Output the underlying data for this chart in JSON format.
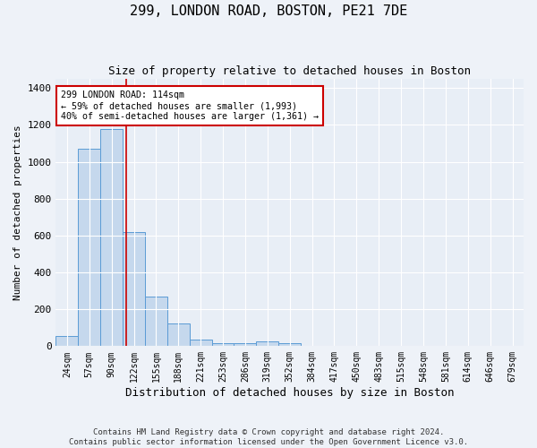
{
  "title": "299, LONDON ROAD, BOSTON, PE21 7DE",
  "subtitle": "Size of property relative to detached houses in Boston",
  "xlabel": "Distribution of detached houses by size in Boston",
  "ylabel": "Number of detached properties",
  "categories": [
    "24sqm",
    "57sqm",
    "90sqm",
    "122sqm",
    "155sqm",
    "188sqm",
    "221sqm",
    "253sqm",
    "286sqm",
    "319sqm",
    "352sqm",
    "384sqm",
    "417sqm",
    "450sqm",
    "483sqm",
    "515sqm",
    "548sqm",
    "581sqm",
    "614sqm",
    "646sqm",
    "679sqm"
  ],
  "values": [
    55,
    1070,
    1180,
    620,
    270,
    125,
    38,
    18,
    18,
    25,
    18,
    0,
    0,
    0,
    0,
    0,
    0,
    0,
    0,
    0,
    0
  ],
  "bar_color": "#c5d8ed",
  "bar_edge_color": "#5b9bd5",
  "property_line_x": 2.67,
  "annotation_text": "299 LONDON ROAD: 114sqm\n← 59% of detached houses are smaller (1,993)\n40% of semi-detached houses are larger (1,361) →",
  "annotation_box_color": "#ffffff",
  "annotation_box_edge_color": "#cc0000",
  "line_color": "#cc0000",
  "ylim": [
    0,
    1450
  ],
  "yticks": [
    0,
    200,
    400,
    600,
    800,
    1000,
    1200,
    1400
  ],
  "footer": "Contains HM Land Registry data © Crown copyright and database right 2024.\nContains public sector information licensed under the Open Government Licence v3.0.",
  "background_color": "#eef2f8",
  "plot_background": "#e8eef6"
}
